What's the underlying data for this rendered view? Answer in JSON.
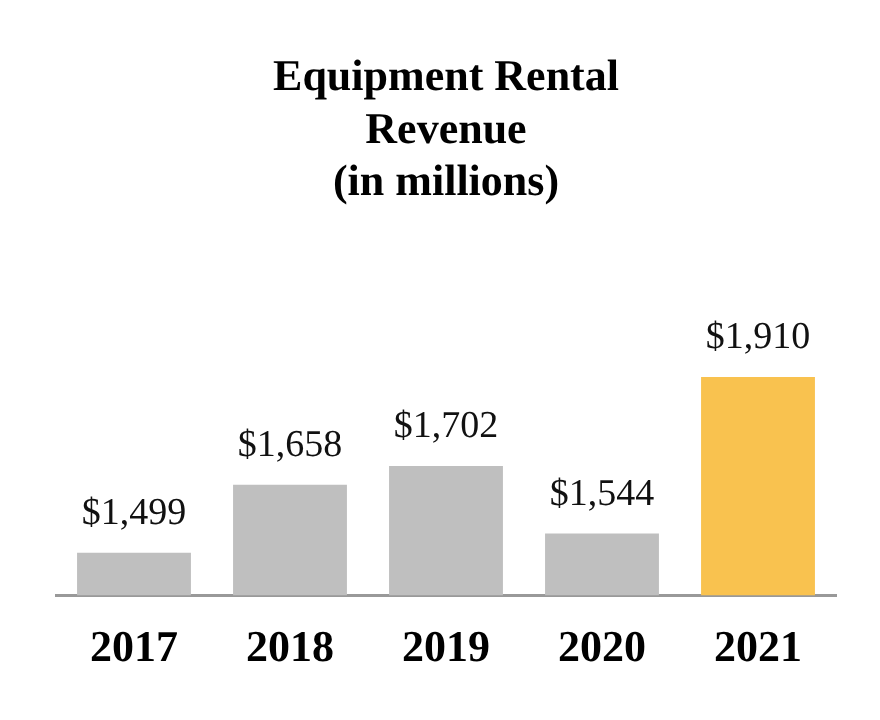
{
  "chart_data": {
    "type": "bar",
    "title": "Equipment Rental Revenue (in millions)",
    "categories": [
      "2017",
      "2018",
      "2019",
      "2020",
      "2021"
    ],
    "values": [
      1499,
      1658,
      1702,
      1544,
      1910
    ],
    "value_labels": [
      "$1,499",
      "$1,658",
      "$1,702",
      "$1,544",
      "$1,910"
    ],
    "colors": [
      "#bfbfbf",
      "#bfbfbf",
      "#bfbfbf",
      "#bfbfbf",
      "#f9c24f"
    ],
    "tick_labels": "x",
    "grid": false,
    "legend": false
  }
}
